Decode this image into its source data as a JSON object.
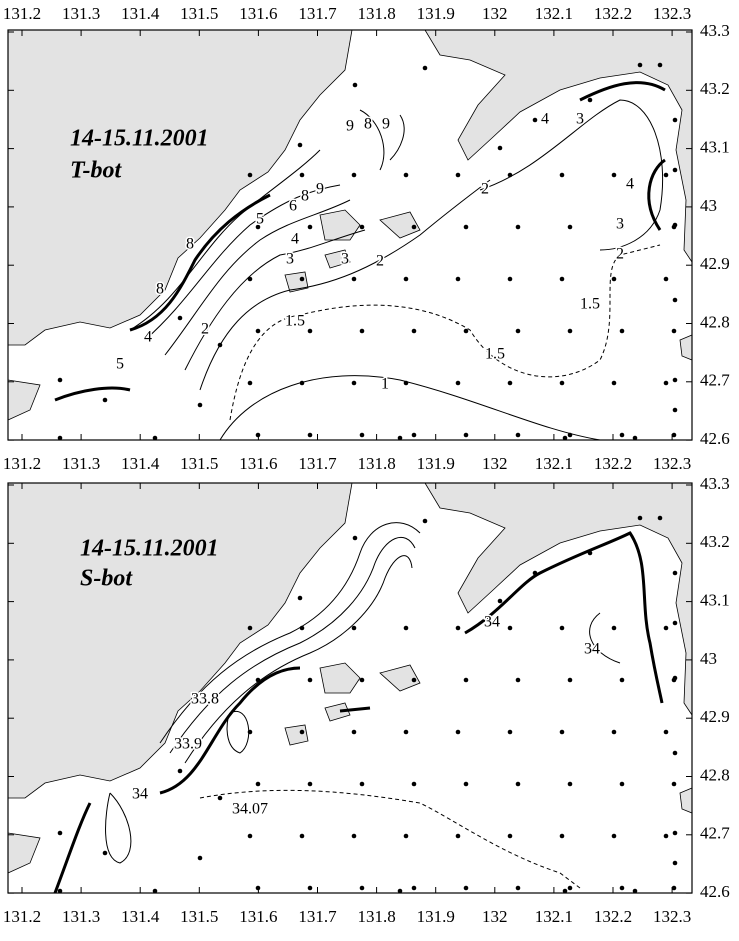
{
  "x_axis": {
    "ticks": [
      "131.2",
      "131.3",
      "131.4",
      "131.5",
      "131.6",
      "131.7",
      "131.8",
      "131.9",
      "132",
      "132.1",
      "132.2",
      "132.3"
    ]
  },
  "y_axis": {
    "ticks": [
      "43.3",
      "43.2",
      "43.1",
      "43",
      "42.9",
      "42.8",
      "42.7",
      "42.6"
    ]
  },
  "panels": [
    {
      "date": "14-15.11.2001",
      "parameter": "T-bot",
      "contour_labels": [
        "4",
        "3",
        "4",
        "3",
        "2",
        "1.5",
        "1.5",
        "1",
        "1.5",
        "2",
        "3",
        "3",
        "4",
        "5",
        "6",
        "8",
        "9",
        "2",
        "2",
        "8",
        "8",
        "4",
        "5",
        "9",
        "8",
        "9"
      ]
    },
    {
      "date": "14-15.11.2001",
      "parameter": "S-bot",
      "contour_labels": [
        "34",
        "34",
        "33.8",
        "33.9",
        "34",
        "34.07"
      ]
    }
  ]
}
